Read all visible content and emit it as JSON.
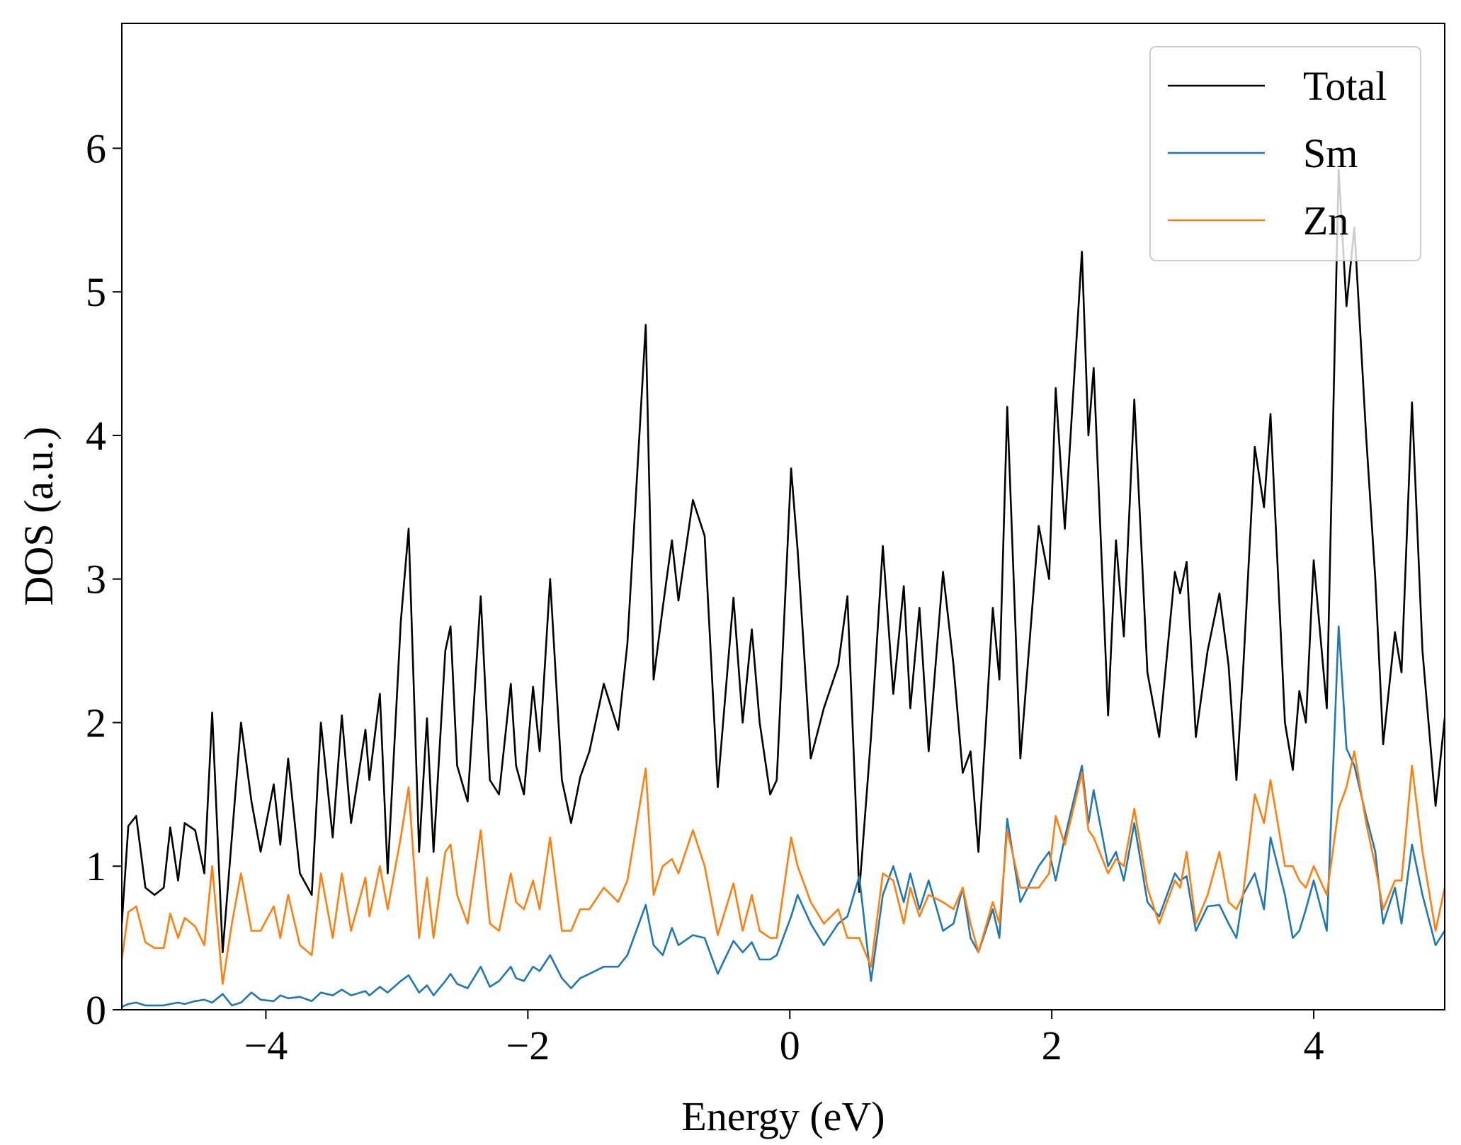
{
  "chart_data": {
    "type": "line",
    "xlabel": "Energy (eV)",
    "ylabel": "DOS (a.u.)",
    "x": [
      -5.1,
      -5.05,
      -4.99,
      -4.92,
      -4.85,
      -4.78,
      -4.73,
      -4.67,
      -4.62,
      -4.54,
      -4.47,
      -4.41,
      -4.33,
      -4.26,
      -4.19,
      -4.11,
      -4.04,
      -3.94,
      -3.89,
      -3.83,
      -3.74,
      -3.65,
      -3.58,
      -3.49,
      -3.42,
      -3.35,
      -3.24,
      -3.21,
      -3.13,
      -3.07,
      -2.97,
      -2.91,
      -2.83,
      -2.77,
      -2.72,
      -2.63,
      -2.59,
      -2.54,
      -2.46,
      -2.36,
      -2.29,
      -2.22,
      -2.13,
      -2.09,
      -2.03,
      -1.96,
      -1.91,
      -1.83,
      -1.74,
      -1.67,
      -1.6,
      -1.53,
      -1.42,
      -1.31,
      -1.24,
      -1.1,
      -1.04,
      -0.97,
      -0.9,
      -0.85,
      -0.74,
      -0.65,
      -0.55,
      -0.43,
      -0.36,
      -0.29,
      -0.23,
      -0.15,
      -0.1,
      0.01,
      0.06,
      0.16,
      0.26,
      0.37,
      0.44,
      0.53,
      0.62,
      0.71,
      0.79,
      0.87,
      0.92,
      0.99,
      1.06,
      1.17,
      1.25,
      1.32,
      1.38,
      1.44,
      1.55,
      1.6,
      1.66,
      1.76,
      1.9,
      1.98,
      2.03,
      2.1,
      2.23,
      2.28,
      2.32,
      2.43,
      2.49,
      2.55,
      2.63,
      2.73,
      2.82,
      2.94,
      2.98,
      3.03,
      3.1,
      3.19,
      3.28,
      3.35,
      3.41,
      3.46,
      3.55,
      3.62,
      3.67,
      3.78,
      3.84,
      3.89,
      3.94,
      4.0,
      4.1,
      4.19,
      4.25,
      4.31,
      4.4,
      4.47,
      4.53,
      4.62,
      4.67,
      4.75,
      4.83,
      4.93,
      5.0
    ],
    "series": [
      {
        "name": "Total",
        "color": "#000000",
        "values": [
          0.6,
          1.28,
          1.35,
          0.85,
          0.8,
          0.85,
          1.27,
          0.9,
          1.3,
          1.25,
          0.95,
          2.07,
          0.4,
          1.2,
          2.0,
          1.45,
          1.1,
          1.57,
          1.15,
          1.75,
          0.95,
          0.8,
          2.0,
          1.2,
          2.05,
          1.3,
          1.95,
          1.6,
          2.2,
          0.95,
          2.7,
          3.35,
          1.1,
          2.03,
          1.1,
          2.5,
          2.67,
          1.7,
          1.45,
          2.88,
          1.6,
          1.5,
          2.27,
          1.7,
          1.5,
          2.25,
          1.8,
          3.0,
          1.6,
          1.3,
          1.62,
          1.8,
          2.27,
          1.95,
          2.55,
          4.77,
          2.3,
          2.8,
          3.27,
          2.85,
          3.55,
          3.3,
          1.55,
          2.87,
          2.0,
          2.65,
          2.0,
          1.5,
          1.6,
          3.77,
          3.2,
          1.75,
          2.1,
          2.4,
          2.88,
          0.82,
          1.9,
          3.23,
          2.2,
          2.95,
          2.1,
          2.8,
          1.8,
          3.05,
          2.4,
          1.65,
          1.8,
          1.1,
          2.8,
          2.3,
          4.2,
          1.75,
          3.37,
          3.0,
          4.33,
          3.35,
          5.28,
          4.0,
          4.47,
          2.05,
          3.27,
          2.6,
          4.25,
          2.35,
          1.9,
          3.05,
          2.9,
          3.12,
          1.9,
          2.5,
          2.9,
          2.4,
          1.6,
          2.35,
          3.92,
          3.5,
          4.15,
          2.0,
          1.67,
          2.22,
          2.0,
          3.13,
          2.1,
          5.85,
          4.9,
          5.45,
          4.0,
          3.0,
          1.85,
          2.63,
          2.35,
          4.23,
          2.5,
          1.42,
          2.03
        ]
      },
      {
        "name": "Sm",
        "color": "#1f77b4",
        "values": [
          0.02,
          0.04,
          0.05,
          0.03,
          0.03,
          0.03,
          0.04,
          0.05,
          0.04,
          0.06,
          0.07,
          0.05,
          0.11,
          0.03,
          0.05,
          0.12,
          0.07,
          0.06,
          0.1,
          0.08,
          0.09,
          0.06,
          0.12,
          0.1,
          0.14,
          0.1,
          0.13,
          0.1,
          0.16,
          0.12,
          0.2,
          0.24,
          0.12,
          0.17,
          0.1,
          0.2,
          0.25,
          0.18,
          0.15,
          0.3,
          0.16,
          0.2,
          0.3,
          0.22,
          0.2,
          0.3,
          0.27,
          0.38,
          0.22,
          0.15,
          0.22,
          0.25,
          0.3,
          0.3,
          0.38,
          0.73,
          0.45,
          0.38,
          0.57,
          0.45,
          0.52,
          0.5,
          0.25,
          0.48,
          0.4,
          0.47,
          0.35,
          0.35,
          0.38,
          0.65,
          0.8,
          0.6,
          0.45,
          0.6,
          0.65,
          0.93,
          0.2,
          0.8,
          1.0,
          0.75,
          0.95,
          0.7,
          0.9,
          0.55,
          0.6,
          0.85,
          0.5,
          0.4,
          0.7,
          0.5,
          1.33,
          0.75,
          1.0,
          1.1,
          0.9,
          1.2,
          1.7,
          1.3,
          1.53,
          1.0,
          1.1,
          0.9,
          1.3,
          0.75,
          0.65,
          0.95,
          0.9,
          0.93,
          0.55,
          0.72,
          0.73,
          0.6,
          0.5,
          0.8,
          0.95,
          0.7,
          1.2,
          0.8,
          0.5,
          0.55,
          0.7,
          0.9,
          0.55,
          2.67,
          1.82,
          1.7,
          1.35,
          1.1,
          0.6,
          0.85,
          0.6,
          1.15,
          0.8,
          0.45,
          0.55
        ]
      },
      {
        "name": "Zn",
        "color": "#ff7f0e",
        "values": [
          0.35,
          0.68,
          0.72,
          0.47,
          0.43,
          0.43,
          0.67,
          0.5,
          0.64,
          0.58,
          0.45,
          1.0,
          0.18,
          0.6,
          0.95,
          0.55,
          0.55,
          0.72,
          0.5,
          0.8,
          0.45,
          0.38,
          0.95,
          0.5,
          0.95,
          0.55,
          0.92,
          0.65,
          1.0,
          0.7,
          1.2,
          1.55,
          0.5,
          0.92,
          0.5,
          1.1,
          1.15,
          0.8,
          0.6,
          1.25,
          0.6,
          0.55,
          0.95,
          0.75,
          0.7,
          0.9,
          0.7,
          1.2,
          0.55,
          0.55,
          0.7,
          0.7,
          0.85,
          0.75,
          0.9,
          1.68,
          0.8,
          1.0,
          1.05,
          0.95,
          1.25,
          1.0,
          0.52,
          0.88,
          0.55,
          0.8,
          0.55,
          0.5,
          0.5,
          1.2,
          1.0,
          0.75,
          0.6,
          0.7,
          0.5,
          0.5,
          0.3,
          0.95,
          0.9,
          0.6,
          0.85,
          0.65,
          0.8,
          0.75,
          0.7,
          0.85,
          0.6,
          0.4,
          0.75,
          0.6,
          1.25,
          0.85,
          0.85,
          0.95,
          1.35,
          1.15,
          1.65,
          1.25,
          1.2,
          0.95,
          1.05,
          1.0,
          1.4,
          0.85,
          0.6,
          0.9,
          0.85,
          1.1,
          0.6,
          0.8,
          1.1,
          0.75,
          0.7,
          0.8,
          1.5,
          1.3,
          1.6,
          1.0,
          1.0,
          0.9,
          0.85,
          1.0,
          0.8,
          1.4,
          1.55,
          1.8,
          1.3,
          1.0,
          0.7,
          0.9,
          0.9,
          1.7,
          1.1,
          0.55,
          0.85
        ]
      }
    ],
    "xlim": [
      -5.1,
      5.0
    ],
    "ylim": [
      0,
      6.87
    ],
    "xticks": [
      {
        "value": -4,
        "label": "−4"
      },
      {
        "value": -2,
        "label": "−2"
      },
      0,
      2,
      4
    ],
    "yticks": [
      0,
      1,
      2,
      3,
      4,
      5,
      6
    ],
    "legend": "upper right"
  }
}
